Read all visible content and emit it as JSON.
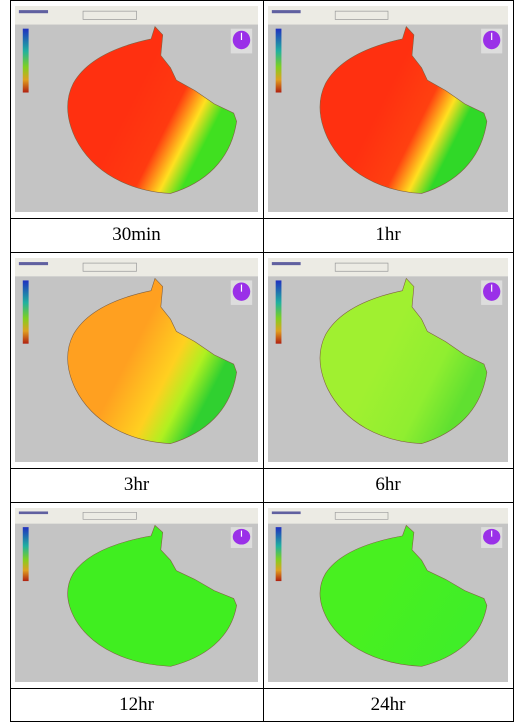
{
  "table": {
    "rows": [
      [
        "30min",
        "1hr"
      ],
      [
        "3hr",
        "6hr"
      ],
      [
        "12hr",
        "24hr"
      ]
    ]
  }
}
